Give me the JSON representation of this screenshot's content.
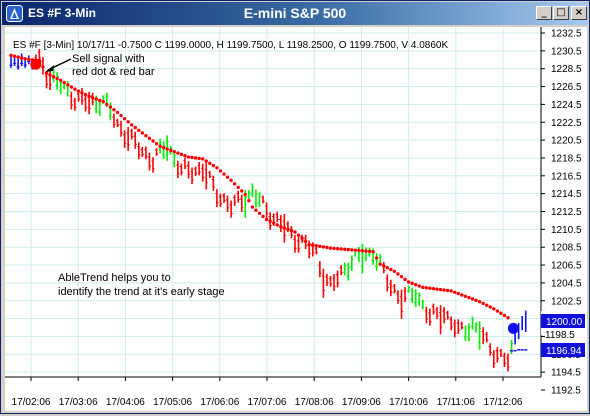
{
  "window": {
    "title": "ES #F 3-Min",
    "center_title": "E-mini S&P 500",
    "buttons": {
      "minimize": "_",
      "maximize": "□",
      "close": "×"
    }
  },
  "chart_info": "ES #F [3-Min] 10/17/11  -0.7500 C 1199.0000, H 1199.7500, L 1198.2500, O 1199.7500, V 4.0860K",
  "annotations": {
    "sell_signal_line1": "Sell signal with",
    "sell_signal_line2": "red dot & red bar",
    "trend_line1": "AbleTrend helps you to",
    "trend_line2": "identify the trend at it's early stage"
  },
  "price_labels": {
    "current": "1200.00",
    "secondary": "1196.94",
    "partial": "1198.5"
  },
  "colors": {
    "down": "#ff0000",
    "up": "#00ee00",
    "signal_blue": "#1010ee",
    "grid": "#cdeeee",
    "title_start": "#0a246a",
    "title_end": "#a6caf0"
  },
  "chart_data": {
    "type": "bar",
    "y_ticks": [
      "1232.5",
      "1230.5",
      "1228.5",
      "1226.5",
      "1224.5",
      "1222.5",
      "1220.5",
      "1218.5",
      "1216.5",
      "1214.5",
      "1212.5",
      "1210.5",
      "1208.5",
      "1206.5",
      "1204.5",
      "1202.5",
      "1200.5",
      "1198.5",
      "1196.5",
      "1194.5",
      "1192.5"
    ],
    "ylim": [
      1192.5,
      1232.5
    ],
    "x_ticks": [
      "17/02:06",
      "17/03:06",
      "17/04:06",
      "17/05:06",
      "17/06:06",
      "17/07:06",
      "17/08:06",
      "17/09:06",
      "17/10:06",
      "17/11:06",
      "17/12:06"
    ],
    "price_path": [
      [
        0,
        1229.6
      ],
      [
        8,
        1229.4
      ],
      [
        10,
        1228.0
      ],
      [
        18,
        1225.2
      ],
      [
        22,
        1224.6
      ],
      [
        26,
        1225.0
      ],
      [
        30,
        1222.2
      ],
      [
        36,
        1219.6
      ],
      [
        40,
        1218.2
      ],
      [
        44,
        1220.0
      ],
      [
        48,
        1217.0
      ],
      [
        54,
        1217.2
      ],
      [
        58,
        1214.6
      ],
      [
        62,
        1213.0
      ],
      [
        68,
        1214.6
      ],
      [
        74,
        1211.8
      ],
      [
        80,
        1209.6
      ],
      [
        86,
        1207.8
      ],
      [
        88,
        1205.2
      ],
      [
        90,
        1204.0
      ],
      [
        94,
        1206.2
      ],
      [
        98,
        1207.4
      ],
      [
        102,
        1208.0
      ],
      [
        106,
        1204.8
      ],
      [
        110,
        1202.6
      ],
      [
        114,
        1203.4
      ],
      [
        118,
        1200.6
      ],
      [
        122,
        1201.2
      ],
      [
        126,
        1199.0
      ],
      [
        130,
        1199.8
      ],
      [
        134,
        1197.8
      ],
      [
        136,
        1196.8
      ],
      [
        140,
        1195.6
      ],
      [
        142,
        1198.0
      ],
      [
        144,
        1198.6
      ],
      [
        145,
        1199.6
      ]
    ],
    "up_ranges": [
      [
        12,
        16
      ],
      [
        24,
        28
      ],
      [
        42,
        46
      ],
      [
        66,
        70
      ],
      [
        94,
        104
      ],
      [
        112,
        116
      ],
      [
        128,
        132
      ],
      [
        141,
        145
      ]
    ],
    "stop_dots": [
      [
        0,
        1230.0
      ],
      [
        4,
        1229.6
      ],
      [
        8,
        1229.4
      ],
      [
        10,
        1228.0
      ],
      [
        14,
        1227.2
      ],
      [
        18,
        1226.2
      ],
      [
        22,
        1225.4
      ],
      [
        26,
        1224.8
      ],
      [
        30,
        1223.6
      ],
      [
        34,
        1222.2
      ],
      [
        38,
        1221.0
      ],
      [
        42,
        1219.8
      ],
      [
        46,
        1219.2
      ],
      [
        50,
        1218.6
      ],
      [
        54,
        1218.4
      ],
      [
        58,
        1217.4
      ],
      [
        62,
        1216.0
      ],
      [
        66,
        1214.4
      ],
      [
        68,
        1213.0
      ],
      [
        72,
        1211.6
      ],
      [
        76,
        1210.8
      ],
      [
        80,
        1210.2
      ],
      [
        84,
        1208.8
      ],
      [
        90,
        1208.4
      ],
      [
        96,
        1208.2
      ],
      [
        102,
        1208.0
      ],
      [
        104,
        1206.6
      ],
      [
        108,
        1205.8
      ],
      [
        112,
        1204.6
      ],
      [
        116,
        1204.0
      ],
      [
        120,
        1203.8
      ],
      [
        124,
        1203.6
      ],
      [
        128,
        1203.0
      ],
      [
        132,
        1202.4
      ],
      [
        136,
        1201.6
      ],
      [
        140,
        1200.6
      ]
    ],
    "pre_signal_blue_bars": [
      [
        0,
        1229.8,
        1228.6
      ],
      [
        1,
        1230.0,
        1228.8
      ],
      [
        2,
        1229.6,
        1228.4
      ],
      [
        3,
        1230.2,
        1228.8
      ],
      [
        4,
        1229.8,
        1228.6
      ],
      [
        5,
        1230.0,
        1229.0
      ],
      [
        6,
        1229.6,
        1228.4
      ]
    ],
    "blue_signal_dot": [
      141.5,
      1199.4
    ],
    "blue_tail_bars": [
      [
        142,
        1199.2,
        1197.6
      ],
      [
        143,
        1200.0,
        1198.2
      ],
      [
        144,
        1200.8,
        1199.2
      ],
      [
        145,
        1201.4,
        1199.0
      ]
    ],
    "blue_dashes": [
      [
        141,
        1196.9
      ],
      [
        142,
        1196.9
      ],
      [
        143,
        1197.0
      ],
      [
        144,
        1197.0
      ],
      [
        145,
        1197.0
      ]
    ],
    "red_signal_dot": [
      7,
      1229.0
    ]
  }
}
